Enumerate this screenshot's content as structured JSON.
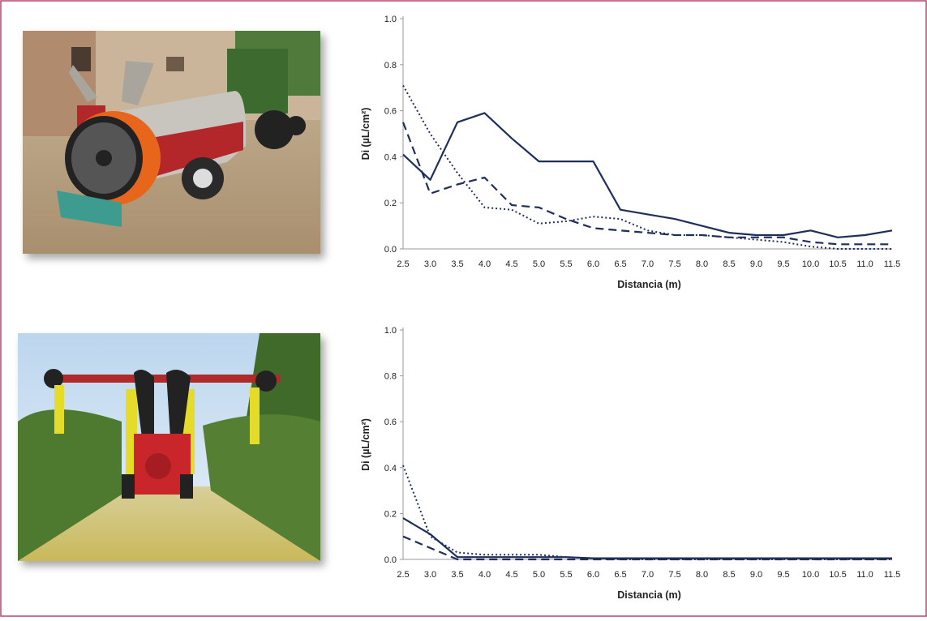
{
  "chart_data": [
    {
      "type": "line",
      "categories": [
        "2.5",
        "3.0",
        "3.5",
        "4.0",
        "4.5",
        "5.0",
        "5.5",
        "6.0",
        "6.5",
        "7.0",
        "7.5",
        "8.0",
        "8.5",
        "9.0",
        "9.5",
        "10.0",
        "10.5",
        "11.0",
        "11.5"
      ],
      "x_label": "Distancia (m)",
      "y_label": "Di (µL/cm²)",
      "ylim": [
        0,
        1
      ],
      "yticks": [
        {
          "value": 0,
          "label": "0.0"
        },
        0.2,
        0.4,
        0.6,
        0.8,
        {
          "value": 1,
          "label": "1.0"
        }
      ],
      "grid": false,
      "series": [
        {
          "color": "#1f2f5a",
          "style": "solid",
          "values": [
            0.41,
            0.3,
            0.55,
            0.59,
            0.48,
            0.38,
            0.38,
            0.38,
            0.17,
            0.15,
            0.13,
            0.1,
            0.07,
            0.06,
            0.06,
            0.08,
            0.05,
            0.06,
            0.08
          ]
        },
        {
          "color": "#1f2f5a",
          "style": "dashed",
          "values": [
            0.55,
            0.24,
            0.28,
            0.31,
            0.19,
            0.18,
            0.13,
            0.09,
            0.08,
            0.07,
            0.06,
            0.06,
            0.05,
            0.05,
            0.05,
            0.03,
            0.02,
            0.02,
            0.02
          ]
        },
        {
          "color": "#1f2f5a",
          "style": "dotted",
          "values": [
            0.71,
            0.5,
            0.33,
            0.18,
            0.17,
            0.11,
            0.12,
            0.14,
            0.13,
            0.08,
            0.06,
            0.06,
            0.05,
            0.04,
            0.03,
            0.01,
            0.0,
            0.0,
            0.0
          ]
        }
      ]
    },
    {
      "type": "line",
      "categories": [
        "2.5",
        "3.0",
        "3.5",
        "4.0",
        "4.5",
        "5.0",
        "5.5",
        "6.0",
        "6.5",
        "7.0",
        "7.5",
        "8.0",
        "8.5",
        "9.0",
        "9.5",
        "10.0",
        "10.5",
        "11.0",
        "11.5"
      ],
      "x_label": "Distancia (m)",
      "y_label": "Di (µL/cm²)",
      "ylim": [
        0,
        1
      ],
      "yticks": [
        {
          "value": 0,
          "label": "0.0"
        },
        0.2,
        0.4,
        0.6,
        0.8,
        {
          "value": 1,
          "label": "1.0"
        }
      ],
      "grid": false,
      "series": [
        {
          "color": "#1f2f5a",
          "style": "solid",
          "values": [
            0.18,
            0.11,
            0.01,
            0.01,
            0.01,
            0.01,
            0.01,
            0.005,
            0.005,
            0.005,
            0.005,
            0.005,
            0.005,
            0.005,
            0.005,
            0.005,
            0.005,
            0.005,
            0.005
          ]
        },
        {
          "color": "#1f2f5a",
          "style": "dashed",
          "values": [
            0.1,
            0.05,
            0.0,
            0.0,
            0.0,
            0.0,
            0.0,
            0.0,
            0.0,
            0.0,
            0.0,
            0.0,
            0.0,
            0.0,
            0.0,
            0.0,
            0.0,
            0.0,
            0.0
          ]
        },
        {
          "color": "#1f2f5a",
          "style": "dotted",
          "values": [
            0.41,
            0.1,
            0.03,
            0.02,
            0.02,
            0.02,
            0.01,
            0.005,
            0.0,
            0.0,
            0.0,
            0.0,
            0.0,
            0.0,
            0.0,
            0.0,
            0.0,
            0.0,
            0.0
          ]
        }
      ]
    }
  ]
}
